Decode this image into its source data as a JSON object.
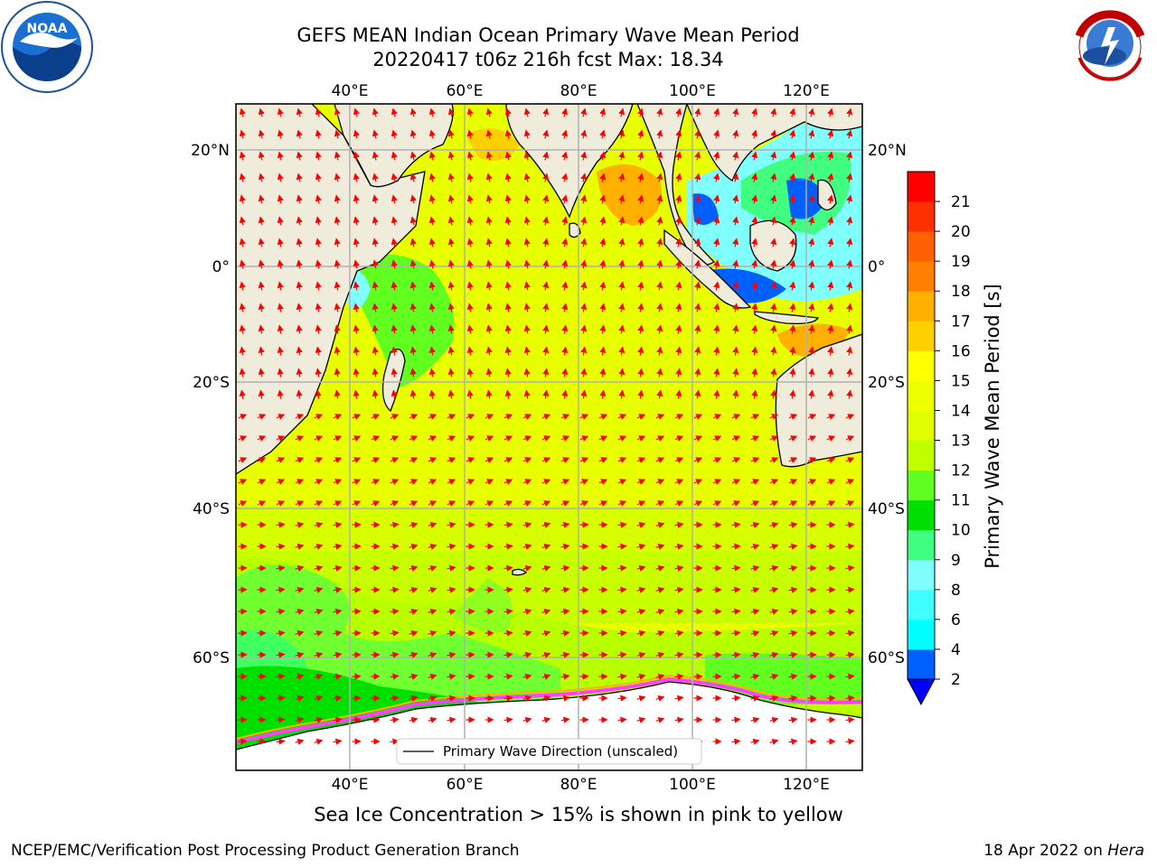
{
  "title": {
    "line1": "GEFS MEAN Indian Ocean Primary Wave Mean Period",
    "line2": "20220417 t06z 216h fcst   Max: 18.34"
  },
  "map": {
    "lon_ticks_top": [
      "40°E",
      "60°E",
      "80°E",
      "100°E",
      "120°E"
    ],
    "lon_ticks_bottom": [
      "40°E",
      "60°E",
      "80°E",
      "100°E",
      "120°E"
    ],
    "lat_ticks_left": [
      "20°N",
      "0°",
      "20°S",
      "40°S",
      "60°S"
    ],
    "lat_ticks_right": [
      "20°N",
      "0°",
      "20°S",
      "40°S",
      "60°S"
    ],
    "legend_label": "Primary Wave Direction (unscaled)",
    "arrow_color": "#ff0000",
    "land_color": "#efecdc"
  },
  "colorbar": {
    "label": "Primary Wave Mean Period [s]",
    "ticks": [
      "2",
      "4",
      "6",
      "8",
      "9",
      "10",
      "11",
      "12",
      "13",
      "14",
      "15",
      "16",
      "17",
      "18",
      "19",
      "20",
      "21"
    ],
    "colors": [
      "#0060ff",
      "#00ffff",
      "#40ffff",
      "#80ffff",
      "#40ff80",
      "#00e000",
      "#60ff20",
      "#c0ff00",
      "#e0ff00",
      "#f0ff00",
      "#ffff00",
      "#ffd000",
      "#ffb000",
      "#ff8000",
      "#ff6000",
      "#ff3000",
      "#ff0000"
    ]
  },
  "subcaption": "Sea Ice Concentration > 15% is shown in pink to yellow",
  "footer": {
    "left": "NCEP/EMC/Verification Post Processing Product Generation Branch",
    "date": "18 Apr 2022 on",
    "machine": "Hera"
  },
  "logos": {
    "left": "noaa-logo",
    "right": "nws-logo"
  }
}
